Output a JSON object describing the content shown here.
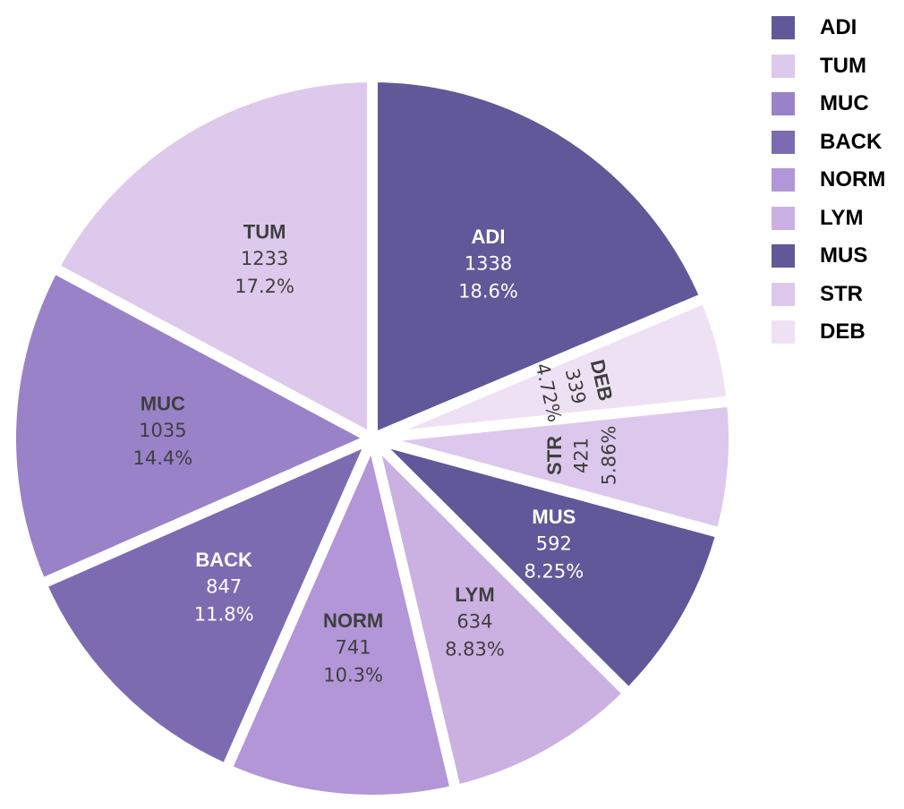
{
  "chart_data": {
    "type": "pie",
    "slices": [
      {
        "label": "ADI",
        "value": 1338,
        "percent": "18.6%",
        "color": "#61589a",
        "text_color": "#ffffff"
      },
      {
        "label": "DEB",
        "value": 339,
        "percent": "4.72%",
        "color": "#efe1f4",
        "text_color": "#3f3f3f"
      },
      {
        "label": "STR",
        "value": 421,
        "percent": "5.86%",
        "color": "#dcc8ec",
        "text_color": "#3f3f3f"
      },
      {
        "label": "MUS",
        "value": 592,
        "percent": "8.25%",
        "color": "#61589a",
        "text_color": "#ffffff"
      },
      {
        "label": "LYM",
        "value": 634,
        "percent": "8.83%",
        "color": "#cbb0e2",
        "text_color": "#3f3f3f"
      },
      {
        "label": "NORM",
        "value": 741,
        "percent": "10.3%",
        "color": "#b296d8",
        "text_color": "#3f3f3f"
      },
      {
        "label": "BACK",
        "value": 847,
        "percent": "11.8%",
        "color": "#7d6bb2",
        "text_color": "#ffffff"
      },
      {
        "label": "MUC",
        "value": 1035,
        "percent": "14.4%",
        "color": "#9a82c9",
        "text_color": "#3f3f3f"
      },
      {
        "label": "TUM",
        "value": 1233,
        "percent": "17.2%",
        "color": "#ddc9ec",
        "text_color": "#3f3f3f"
      }
    ],
    "legend": {
      "placement": "top-right",
      "entries": [
        {
          "label": "ADI",
          "color": "#61589a"
        },
        {
          "label": "TUM",
          "color": "#ddc9ec"
        },
        {
          "label": "MUC",
          "color": "#9a82c9"
        },
        {
          "label": "BACK",
          "color": "#7d6bb2"
        },
        {
          "label": "NORM",
          "color": "#b296d8"
        },
        {
          "label": "LYM",
          "color": "#cbb0e2"
        },
        {
          "label": "MUS",
          "color": "#61589a"
        },
        {
          "label": "STR",
          "color": "#dcc8ec"
        },
        {
          "label": "DEB",
          "color": "#efe1f4"
        }
      ]
    }
  }
}
